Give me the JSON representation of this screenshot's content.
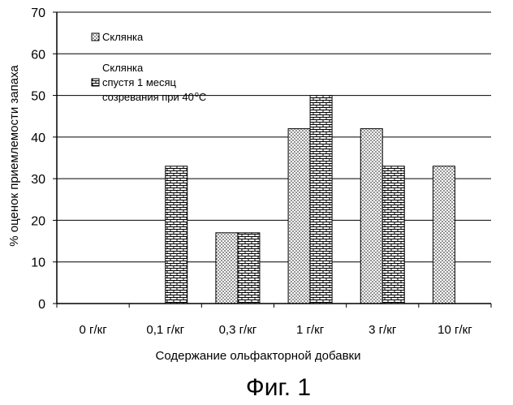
{
  "chart_data": {
    "type": "bar",
    "categories": [
      "0 г/кг",
      "0,1 г/кг",
      "0,3 г/кг",
      "1 г/кг",
      "3 г/кг",
      "10 г/кг"
    ],
    "series": [
      {
        "name": "Склянка",
        "values": [
          0,
          0,
          17,
          42,
          42,
          33
        ]
      },
      {
        "name": "Склянка спустя 1 месяц созревания при 40 °C",
        "values": [
          0,
          33,
          17,
          50,
          33,
          0
        ]
      }
    ],
    "ylim": [
      0,
      70
    ],
    "yticks": [
      0,
      10,
      20,
      30,
      40,
      50,
      60,
      70
    ],
    "xlabel": "Содержание ольфакторной добавки",
    "ylabel": "% оценок приемлемости запаха",
    "grid": true,
    "legend_position": "top-left"
  },
  "legend": {
    "series1_label": "Склянка",
    "series2_line1": "Склянка",
    "series2_line2": "спустя 1 месяц",
    "series2_line3_prefix": "созревания при 40",
    "series2_degree": "o",
    "series2_unit": "C"
  },
  "caption": "Фиг. 1",
  "colors": {
    "axis": "#000000",
    "grid": "#000000",
    "bar_fill": "#ffffff"
  }
}
